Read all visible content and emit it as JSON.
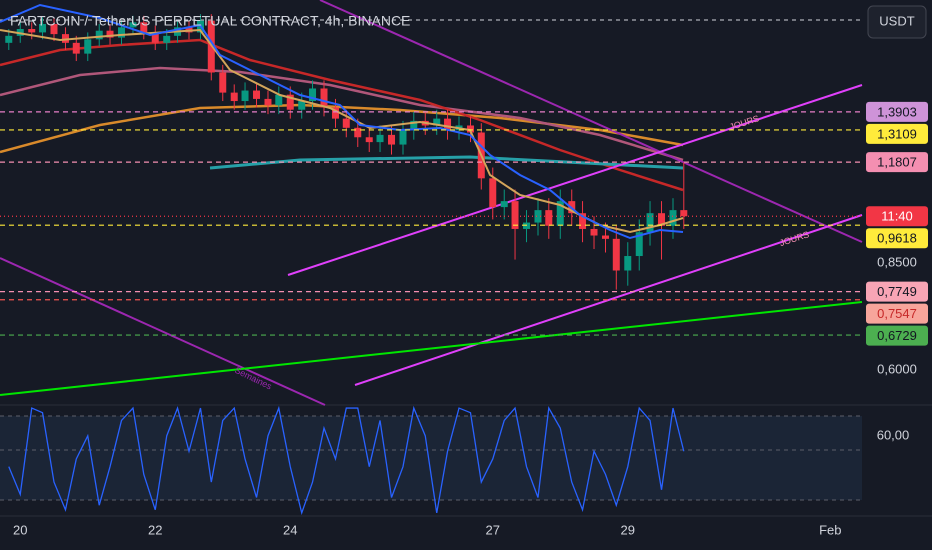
{
  "chart_data": {
    "type": "candlestick",
    "title": "FARTCOIN / TetherUS PERPETUAL CONTRACT, 4h, BINANCE",
    "currency": "USDT",
    "log_scale": true,
    "up_color": "#089981",
    "down_color": "#f23645",
    "xlim": [
      19.7,
      32.47
    ],
    "xticks": [
      20,
      22,
      24,
      27,
      29,
      {
        "value": 32,
        "label": "Feb"
      }
    ],
    "ylim": [
      0.536,
      2.0
    ],
    "yticks": [
      {
        "value": 0.85,
        "label": "0,8500"
      },
      {
        "value": 0.6,
        "label": "0,6000"
      }
    ],
    "x": [
      19.83,
      20.0,
      20.17,
      20.33,
      20.5,
      20.67,
      20.83,
      21.0,
      21.17,
      21.33,
      21.5,
      21.67,
      21.83,
      22.0,
      22.17,
      22.33,
      22.5,
      22.67,
      22.83,
      23.0,
      23.17,
      23.33,
      23.5,
      23.67,
      23.83,
      24.0,
      24.17,
      24.33,
      24.5,
      24.67,
      24.83,
      25.0,
      25.17,
      25.33,
      25.5,
      25.67,
      25.83,
      26.0,
      26.17,
      26.33,
      26.5,
      26.67,
      26.83,
      27.0,
      27.17,
      27.33,
      27.5,
      27.67,
      27.83,
      28.0,
      28.17,
      28.33,
      28.5,
      28.67,
      28.83,
      29.0,
      29.17,
      29.33,
      29.5,
      29.67,
      29.83
    ],
    "open": [
      1.74,
      1.78,
      1.82,
      1.8,
      1.85,
      1.79,
      1.74,
      1.68,
      1.76,
      1.81,
      1.77,
      1.83,
      1.86,
      1.8,
      1.74,
      1.78,
      1.83,
      1.8,
      1.87,
      1.58,
      1.48,
      1.44,
      1.49,
      1.45,
      1.42,
      1.47,
      1.4,
      1.44,
      1.5,
      1.41,
      1.36,
      1.32,
      1.28,
      1.26,
      1.29,
      1.25,
      1.31,
      1.35,
      1.33,
      1.36,
      1.31,
      1.33,
      1.3,
      1.12,
      1.02,
      1.04,
      0.95,
      0.97,
      1.01,
      0.96,
      1.04,
      1.0,
      0.95,
      0.93,
      0.92,
      0.83,
      0.87,
      0.94,
      1.0,
      0.96,
      1.01
    ],
    "high": [
      1.82,
      1.86,
      1.86,
      1.89,
      1.89,
      1.83,
      1.78,
      1.8,
      1.85,
      1.85,
      1.87,
      1.9,
      1.9,
      1.84,
      1.82,
      1.87,
      1.87,
      1.91,
      1.91,
      1.62,
      1.52,
      1.53,
      1.53,
      1.49,
      1.51,
      1.51,
      1.48,
      1.54,
      1.54,
      1.45,
      1.4,
      1.36,
      1.32,
      1.33,
      1.33,
      1.35,
      1.39,
      1.39,
      1.4,
      1.4,
      1.37,
      1.37,
      1.34,
      1.16,
      1.08,
      1.08,
      1.01,
      1.05,
      1.05,
      1.08,
      1.08,
      1.04,
      0.99,
      0.97,
      0.96,
      0.91,
      0.98,
      1.04,
      1.04,
      1.05,
      1.18
    ],
    "low": [
      1.7,
      1.74,
      1.76,
      1.76,
      1.75,
      1.7,
      1.64,
      1.64,
      1.72,
      1.73,
      1.73,
      1.79,
      1.76,
      1.7,
      1.7,
      1.74,
      1.76,
      1.76,
      1.54,
      1.44,
      1.4,
      1.4,
      1.41,
      1.38,
      1.38,
      1.36,
      1.36,
      1.4,
      1.37,
      1.32,
      1.28,
      1.24,
      1.22,
      1.22,
      1.21,
      1.21,
      1.27,
      1.29,
      1.29,
      1.27,
      1.27,
      1.26,
      1.08,
      0.98,
      0.98,
      0.86,
      0.91,
      0.93,
      0.92,
      0.92,
      0.96,
      0.91,
      0.89,
      0.88,
      0.78,
      0.79,
      0.83,
      0.9,
      0.86,
      0.92,
      0.95
    ],
    "close": [
      1.78,
      1.82,
      1.8,
      1.85,
      1.79,
      1.74,
      1.68,
      1.76,
      1.81,
      1.77,
      1.83,
      1.86,
      1.8,
      1.74,
      1.78,
      1.83,
      1.8,
      1.87,
      1.58,
      1.48,
      1.44,
      1.49,
      1.45,
      1.42,
      1.47,
      1.4,
      1.44,
      1.5,
      1.41,
      1.36,
      1.32,
      1.28,
      1.26,
      1.29,
      1.25,
      1.31,
      1.35,
      1.33,
      1.36,
      1.31,
      1.33,
      1.3,
      1.12,
      1.02,
      1.04,
      0.95,
      0.97,
      1.01,
      0.96,
      1.04,
      1.0,
      0.95,
      0.93,
      0.92,
      0.83,
      0.87,
      0.94,
      1.0,
      0.96,
      1.01,
      0.99
    ],
    "price_labels": [
      {
        "value": 1.3903,
        "label": "1,3903",
        "color": "#ce93d8",
        "text_color": "#131722",
        "line": "#e57ec8"
      },
      {
        "value": 1.3109,
        "label": "1,3109",
        "color": "#ffeb3b",
        "text_color": "#131722",
        "line": "#ffeb3b"
      },
      {
        "value": 1.1807,
        "label": "1,1807",
        "color": "#f48fb1",
        "text_color": "#131722",
        "line": "#f48fb1"
      },
      {
        "value": 0.99,
        "label": "11:40",
        "color": "#f23645",
        "text_color": "#ffffff",
        "line": "#f23645"
      },
      {
        "value": 0.9618,
        "label": "0,9618",
        "color": "#ffeb3b",
        "text_color": "#131722",
        "line": "#ffeb3b"
      },
      {
        "value": 0.7749,
        "label": "0,7749",
        "color": "#f8a5b5",
        "text_color": "#131722",
        "line": "#f48fb1"
      },
      {
        "value": 0.7547,
        "label": "0,7547",
        "color": "#f7a59b",
        "text_color": "#c62828",
        "line": "#ef5350"
      },
      {
        "value": 0.6729,
        "label": "0,6729",
        "color": "#4caf50",
        "text_color": "#131722",
        "line": "#4caf50"
      }
    ],
    "annotations": [
      "JOURS",
      "JOURS",
      "Semaines"
    ],
    "oscillator": {
      "color": "#2962ff",
      "ylim": [
        8,
        80
      ],
      "yticks": [
        {
          "value": 60,
          "label": "60,00"
        }
      ],
      "values": [
        40,
        22,
        78,
        75,
        30,
        12,
        45,
        60,
        15,
        40,
        70,
        78,
        35,
        12,
        60,
        78,
        50,
        78,
        30,
        70,
        78,
        45,
        20,
        60,
        78,
        40,
        10,
        30,
        65,
        45,
        78,
        78,
        40,
        70,
        20,
        40,
        78,
        60,
        10,
        50,
        78,
        75,
        30,
        45,
        70,
        78,
        40,
        20,
        78,
        65,
        30,
        12,
        50,
        35,
        15,
        40,
        78,
        70,
        25,
        78,
        50
      ]
    }
  }
}
